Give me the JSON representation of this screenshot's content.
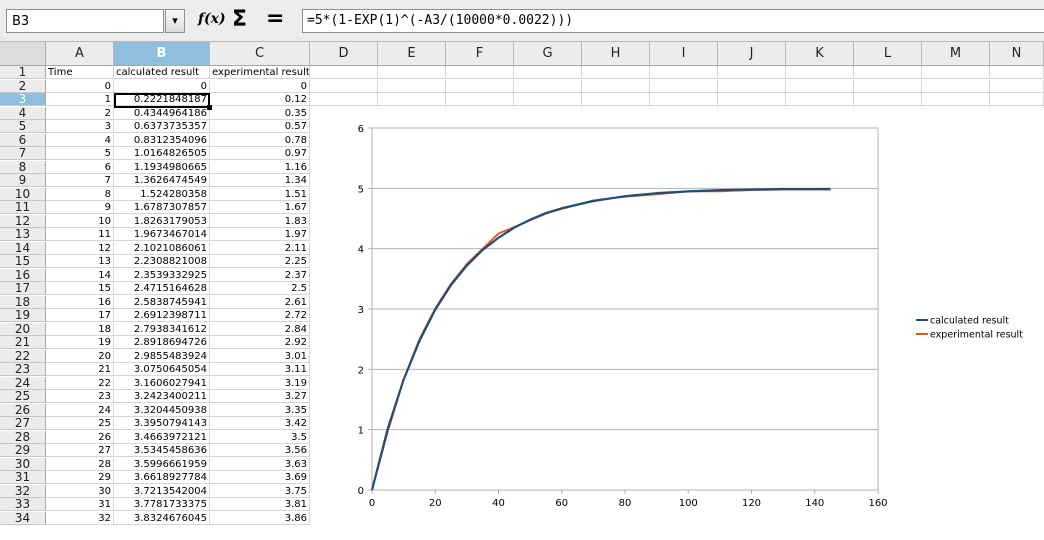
{
  "formula_bar": {
    "cell_ref": "B3",
    "dropdown_icon": "chevron-down-icon",
    "function_wizard_icon": "f(x)",
    "sum_icon": "Σ",
    "equals_icon": "=",
    "formula": "=5*(1-EXP(1)^(-A3/(10000*0.0022)))"
  },
  "columns": [
    "A",
    "B",
    "C",
    "D",
    "E",
    "F",
    "G",
    "H",
    "I",
    "J",
    "K",
    "L",
    "M",
    "N"
  ],
  "active_column": "B",
  "active_row": 3,
  "active_cell": "B3",
  "headers": [
    "Time",
    "calculated result",
    "experimental result"
  ],
  "rows": [
    {
      "row": "2",
      "a": "0",
      "b": "0",
      "c": "0"
    },
    {
      "row": "3",
      "a": "1",
      "b": "0.2221848187",
      "c": "0.12"
    },
    {
      "row": "4",
      "a": "2",
      "b": "0.4344964186",
      "c": "0.35"
    },
    {
      "row": "5",
      "a": "3",
      "b": "0.6373735357",
      "c": "0.57"
    },
    {
      "row": "6",
      "a": "4",
      "b": "0.8312354096",
      "c": "0.78"
    },
    {
      "row": "7",
      "a": "5",
      "b": "1.0164826505",
      "c": "0.97"
    },
    {
      "row": "8",
      "a": "6",
      "b": "1.1934980665",
      "c": "1.16"
    },
    {
      "row": "9",
      "a": "7",
      "b": "1.3626474549",
      "c": "1.34"
    },
    {
      "row": "10",
      "a": "8",
      "b": "1.524280358",
      "c": "1.51"
    },
    {
      "row": "11",
      "a": "9",
      "b": "1.6787307857",
      "c": "1.67"
    },
    {
      "row": "12",
      "a": "10",
      "b": "1.8263179053",
      "c": "1.83"
    },
    {
      "row": "13",
      "a": "11",
      "b": "1.9673467014",
      "c": "1.97"
    },
    {
      "row": "14",
      "a": "12",
      "b": "2.1021086061",
      "c": "2.11"
    },
    {
      "row": "15",
      "a": "13",
      "b": "2.2308821008",
      "c": "2.25"
    },
    {
      "row": "16",
      "a": "14",
      "b": "2.3539332925",
      "c": "2.37"
    },
    {
      "row": "17",
      "a": "15",
      "b": "2.4715164628",
      "c": "2.5"
    },
    {
      "row": "18",
      "a": "16",
      "b": "2.5838745941",
      "c": "2.61"
    },
    {
      "row": "19",
      "a": "17",
      "b": "2.6912398711",
      "c": "2.72"
    },
    {
      "row": "20",
      "a": "18",
      "b": "2.7938341612",
      "c": "2.84"
    },
    {
      "row": "21",
      "a": "19",
      "b": "2.8918694726",
      "c": "2.92"
    },
    {
      "row": "22",
      "a": "20",
      "b": "2.9855483924",
      "c": "3.01"
    },
    {
      "row": "23",
      "a": "21",
      "b": "3.0750645054",
      "c": "3.11"
    },
    {
      "row": "24",
      "a": "22",
      "b": "3.1606027941",
      "c": "3.19"
    },
    {
      "row": "25",
      "a": "23",
      "b": "3.2423400211",
      "c": "3.27"
    },
    {
      "row": "26",
      "a": "24",
      "b": "3.3204450938",
      "c": "3.35"
    },
    {
      "row": "27",
      "a": "25",
      "b": "3.3950794143",
      "c": "3.42"
    },
    {
      "row": "28",
      "a": "26",
      "b": "3.4663972121",
      "c": "3.5"
    },
    {
      "row": "29",
      "a": "27",
      "b": "3.5345458636",
      "c": "3.56"
    },
    {
      "row": "30",
      "a": "28",
      "b": "3.5996661959",
      "c": "3.63"
    },
    {
      "row": "31",
      "a": "29",
      "b": "3.6618927784",
      "c": "3.69"
    },
    {
      "row": "32",
      "a": "30",
      "b": "3.7213542004",
      "c": "3.75"
    },
    {
      "row": "33",
      "a": "31",
      "b": "3.7781733375",
      "c": "3.81"
    },
    {
      "row": "34",
      "a": "32",
      "b": "3.8324676045",
      "c": "3.86"
    }
  ],
  "colors": {
    "calculated": "#1f4e79",
    "experimental": "#e8541e",
    "active_header": "#8fbedf",
    "gridline": "#b3b3b3"
  },
  "chart_data": {
    "type": "line",
    "xlim": [
      0,
      160
    ],
    "ylim": [
      0,
      6
    ],
    "x_ticks": [
      0,
      20,
      40,
      60,
      80,
      100,
      120,
      140,
      160
    ],
    "y_ticks": [
      0,
      1,
      2,
      3,
      4,
      5,
      6
    ],
    "grid": "horizontal",
    "legend": "right",
    "series": [
      {
        "name": "calculated result",
        "x": [
          0,
          5,
          10,
          15,
          20,
          25,
          30,
          35,
          40,
          45,
          50,
          55,
          60,
          70,
          80,
          90,
          100,
          110,
          120,
          130,
          140,
          145
        ],
        "values": [
          0,
          1.02,
          1.83,
          2.47,
          2.99,
          3.4,
          3.72,
          3.98,
          4.18,
          4.35,
          4.48,
          4.59,
          4.67,
          4.79,
          4.87,
          4.92,
          4.95,
          4.97,
          4.98,
          4.99,
          4.99,
          4.99
        ]
      },
      {
        "name": "experimental result",
        "x": [
          0,
          5,
          10,
          15,
          20,
          25,
          30,
          35,
          40,
          45,
          50,
          55,
          60,
          70,
          80,
          90,
          100,
          110,
          120,
          130,
          140,
          145
        ],
        "values": [
          0,
          0.97,
          1.83,
          2.5,
          3.01,
          3.42,
          3.75,
          4.0,
          4.25,
          4.36,
          4.47,
          4.58,
          4.66,
          4.8,
          4.86,
          4.9,
          4.95,
          4.95,
          4.97,
          4.98,
          4.98,
          4.98
        ]
      }
    ]
  }
}
